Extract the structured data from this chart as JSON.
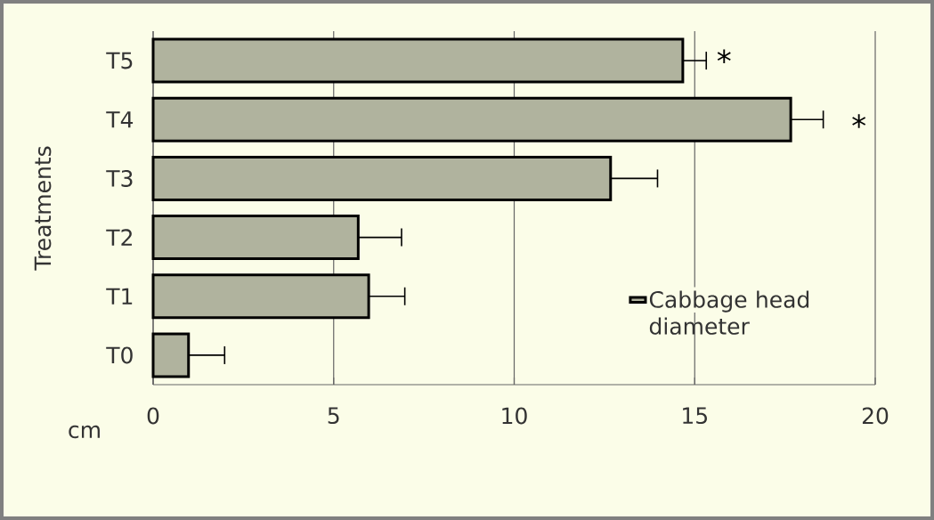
{
  "chart_data": {
    "type": "bar",
    "orientation": "horizontal",
    "ylabel": "Treatments",
    "xlabel": "cm",
    "categories": [
      "T5",
      "T4",
      "T3",
      "T2",
      "T1",
      "T0"
    ],
    "series": [
      {
        "name": "Cabbage head diameter",
        "color": "#b0b39e",
        "values": [
          14.67,
          17.66,
          12.67,
          5.68,
          5.97,
          0.98
        ],
        "errors": [
          0.65,
          0.9,
          1.3,
          1.2,
          1.0,
          1.0
        ]
      }
    ],
    "xlim": [
      0,
      20
    ],
    "xticks": [
      0,
      5,
      10,
      15,
      20
    ],
    "grid": "x",
    "legend": "right",
    "annotations": [
      "*",
      "*"
    ]
  }
}
